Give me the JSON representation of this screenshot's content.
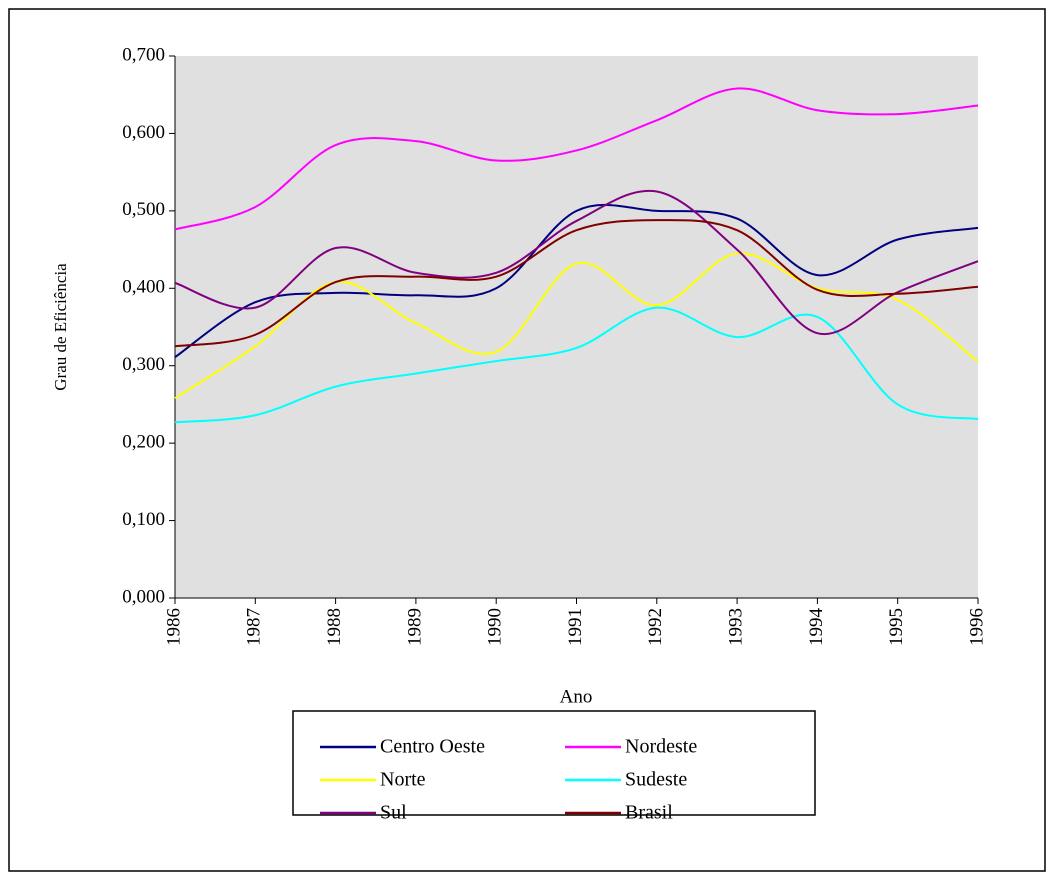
{
  "chart_data": {
    "type": "line",
    "x_label": "Ano",
    "y_label": "Grau de Eficiência",
    "x": [
      1986,
      1987,
      1988,
      1989,
      1990,
      1991,
      1992,
      1993,
      1994,
      1995,
      1996
    ],
    "xlim": [
      1986,
      1996
    ],
    "xticks": [
      1986,
      1987,
      1988,
      1989,
      1990,
      1991,
      1992,
      1993,
      1994,
      1995,
      1996
    ],
    "ylim": [
      0,
      0.7
    ],
    "yticks": [
      {
        "value": 0,
        "label": "0,000"
      },
      {
        "value": 0.1,
        "label": "0,100"
      },
      {
        "value": 0.2,
        "label": "0,200"
      },
      {
        "value": 0.3,
        "label": "0,300"
      },
      {
        "value": 0.4,
        "label": "0,400"
      },
      {
        "value": 0.5,
        "label": "0,500"
      },
      {
        "value": 0.6,
        "label": "0,600"
      },
      {
        "value": 0.7,
        "label": "0,700"
      }
    ],
    "legend": "bottom",
    "series": [
      {
        "name": "Centro Oeste",
        "color": "#000080",
        "values": [
          0.311,
          0.382,
          0.394,
          0.391,
          0.4,
          0.5,
          0.5,
          0.49,
          0.417,
          0.463,
          0.478
        ]
      },
      {
        "name": "Nordeste",
        "color": "#ff00ff",
        "values": [
          0.476,
          0.505,
          0.585,
          0.59,
          0.565,
          0.578,
          0.617,
          0.658,
          0.63,
          0.625,
          0.636
        ]
      },
      {
        "name": "Norte",
        "color": "#ffff00",
        "values": [
          0.258,
          0.325,
          0.408,
          0.355,
          0.318,
          0.432,
          0.378,
          0.445,
          0.4,
          0.385,
          0.305
        ]
      },
      {
        "name": "Sudeste",
        "color": "#00ffff",
        "values": [
          0.227,
          0.236,
          0.273,
          0.29,
          0.306,
          0.323,
          0.375,
          0.337,
          0.363,
          0.25,
          0.231
        ]
      },
      {
        "name": "Sul",
        "color": "#800080",
        "values": [
          0.407,
          0.375,
          0.452,
          0.42,
          0.42,
          0.487,
          0.525,
          0.45,
          0.342,
          0.395,
          0.435
        ]
      },
      {
        "name": "Brasil",
        "color": "#800000",
        "values": [
          0.325,
          0.34,
          0.408,
          0.415,
          0.415,
          0.475,
          0.488,
          0.475,
          0.398,
          0.393,
          0.402
        ]
      }
    ]
  }
}
